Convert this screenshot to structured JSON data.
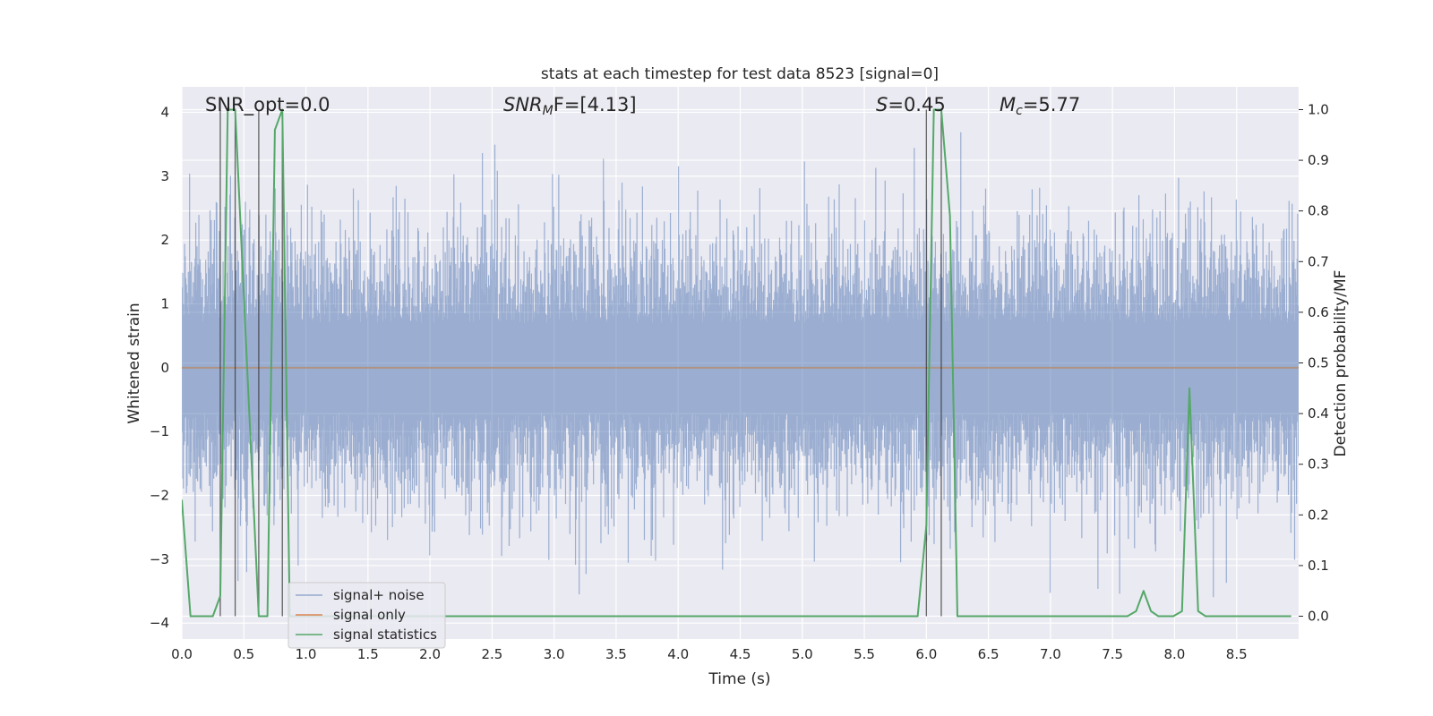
{
  "chart_data": {
    "type": "line",
    "title": "stats at each timestep for test data 8523 [signal=0]",
    "xlabel": "Time (s)",
    "ylabel": "Whitened strain",
    "y2label": "Detection probability/MF",
    "xlim": [
      0.0,
      9.0
    ],
    "ylim": [
      -4.25,
      4.4
    ],
    "y2lim": [
      -0.045,
      1.045
    ],
    "xticks": [
      "0.0",
      "0.5",
      "1.0",
      "1.5",
      "2.0",
      "2.5",
      "3.0",
      "3.5",
      "4.0",
      "4.5",
      "5.0",
      "5.5",
      "6.0",
      "6.5",
      "7.0",
      "7.5",
      "8.0",
      "8.5"
    ],
    "yticks": [
      "4",
      "3",
      "2",
      "1",
      "0",
      "−1",
      "−2",
      "−3",
      "−4"
    ],
    "y2ticks": [
      "1.0",
      "0.9",
      "0.8",
      "0.7",
      "0.6",
      "0.5",
      "0.4",
      "0.3",
      "0.2",
      "0.1",
      "0.0"
    ],
    "grid": true,
    "legend_position": "lower-left",
    "annotations": {
      "snr_opt": "SNR_opt=0.0",
      "snr_mf_base": "SNR",
      "snr_mf_sub": "M",
      "snr_mf_rest": "F=[4.13]",
      "s_var": "S",
      "s_val": "=0.45",
      "mc_var": "M",
      "mc_sub": "c",
      "mc_val": "=5.77"
    },
    "vlines_x": [
      0.31,
      0.43,
      0.62,
      0.81,
      6.0,
      6.12
    ],
    "series": [
      {
        "name": "signal+ noise",
        "color": "#4c72b0",
        "axis": "left",
        "description": "whitened strain noise, roughly within ±2 with spikes to about ±4",
        "amplitude_range": [
          -4.0,
          4.0
        ]
      },
      {
        "name": "signal only",
        "color": "#dd8452",
        "axis": "left",
        "y_constant": 0.0
      },
      {
        "name": "signal statistics",
        "color": "#55a868",
        "axis": "right",
        "x": [
          0.0,
          0.07,
          0.25,
          0.31,
          0.37,
          0.43,
          0.62,
          0.69,
          0.75,
          0.81,
          0.87,
          5.93,
          6.0,
          6.06,
          6.12,
          6.19,
          6.25,
          6.31,
          7.62,
          7.69,
          7.75,
          7.81,
          7.87,
          7.99,
          8.06,
          8.12,
          8.19,
          8.25,
          8.94
        ],
        "y": [
          0.23,
          0.0,
          0.0,
          0.04,
          1.0,
          1.0,
          0.0,
          0.0,
          0.96,
          1.0,
          0.0,
          0.0,
          0.18,
          1.0,
          1.0,
          0.79,
          0.0,
          0.0,
          0.0,
          0.01,
          0.05,
          0.01,
          0.0,
          0.0,
          0.01,
          0.45,
          0.01,
          0.0,
          0.0
        ]
      }
    ]
  }
}
